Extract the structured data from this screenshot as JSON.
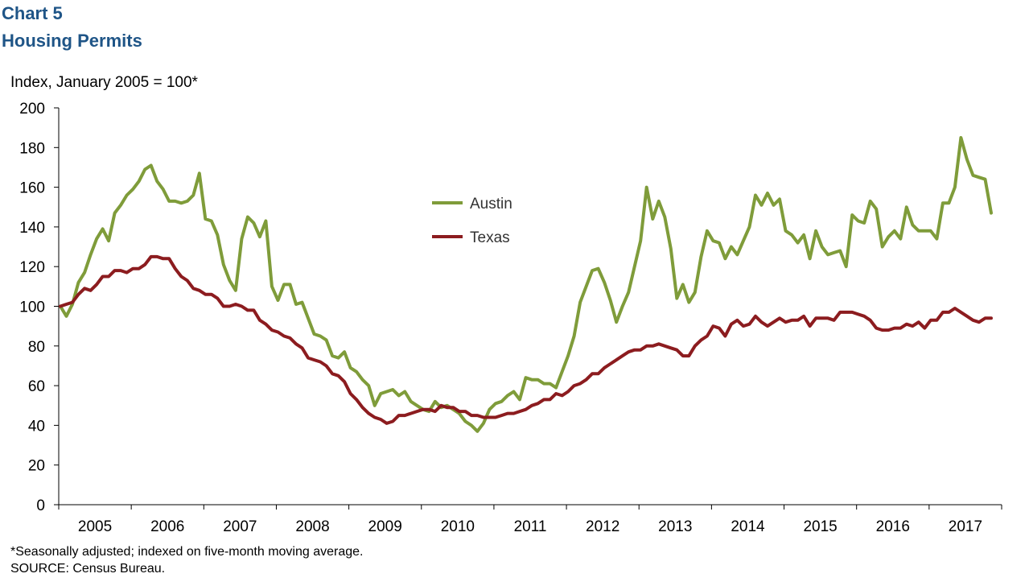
{
  "header": {
    "chart_number": "Chart 5",
    "title": "Housing Permits"
  },
  "footer": {
    "footnote": "*Seasonally adjusted; indexed on five-month moving average.",
    "source": "SOURCE: Census Bureau."
  },
  "colors": {
    "austin": "#7f9c3a",
    "texas": "#8c1c1f",
    "title": "#1f5587"
  },
  "chart_data": {
    "type": "line",
    "title": "Housing Permits",
    "ylabel": "Index, January 2005 = 100*",
    "xlabel": "",
    "x_start": "2005-01",
    "frequency": "monthly",
    "xlim": [
      "2005-01",
      "2017-12"
    ],
    "ylim": [
      0,
      200
    ],
    "yticks": [
      0,
      20,
      40,
      60,
      80,
      100,
      120,
      140,
      160,
      180,
      200
    ],
    "year_labels": [
      "2005",
      "2006",
      "2007",
      "2008",
      "2009",
      "2010",
      "2011",
      "2012",
      "2013",
      "2014",
      "2015",
      "2016",
      "2017"
    ],
    "grid": false,
    "legend": "center",
    "series": [
      {
        "name": "Austin",
        "values": [
          100,
          95,
          101,
          112,
          117,
          126,
          134,
          139,
          133,
          147,
          151,
          156,
          159,
          163,
          169,
          171,
          163,
          159,
          153,
          153,
          152,
          153,
          156,
          167,
          144,
          143,
          136,
          121,
          113,
          108,
          134,
          145,
          142,
          135,
          143,
          110,
          103,
          111,
          111,
          101,
          102,
          94,
          86,
          85,
          83,
          75,
          74,
          77,
          69,
          67,
          63,
          60,
          50,
          56,
          57,
          58,
          55,
          57,
          52,
          50,
          48,
          47,
          52,
          49,
          50,
          48,
          46,
          42,
          40,
          37,
          41,
          48,
          51,
          52,
          55,
          57,
          53,
          64,
          63,
          63,
          61,
          61,
          59,
          67,
          75,
          85,
          102,
          110,
          118,
          119,
          112,
          103,
          92,
          100,
          107,
          120,
          133,
          160,
          144,
          153,
          145,
          129,
          104,
          111,
          102,
          107,
          125,
          138,
          133,
          132,
          124,
          130,
          126,
          133,
          140,
          156,
          151,
          157,
          151,
          154,
          138,
          136,
          132,
          136,
          124,
          138,
          130,
          126,
          127,
          128,
          120,
          146,
          143,
          142,
          153,
          149,
          130,
          135,
          138,
          134,
          150,
          141,
          138,
          138,
          138,
          134,
          152,
          152,
          160,
          185,
          174,
          166,
          165,
          164,
          147
        ]
      },
      {
        "name": "Texas",
        "values": [
          100,
          101,
          102,
          106,
          109,
          108,
          111,
          115,
          115,
          118,
          118,
          117,
          119,
          119,
          121,
          125,
          125,
          124,
          124,
          119,
          115,
          113,
          109,
          108,
          106,
          106,
          104,
          100,
          100,
          101,
          100,
          98,
          98,
          93,
          91,
          88,
          87,
          85,
          84,
          81,
          79,
          74,
          73,
          72,
          70,
          66,
          65,
          62,
          56,
          53,
          49,
          46,
          44,
          43,
          41,
          42,
          45,
          45,
          46,
          47,
          48,
          48,
          47,
          50,
          49,
          49,
          47,
          47,
          45,
          45,
          44,
          44,
          44,
          45,
          46,
          46,
          47,
          48,
          50,
          51,
          53,
          53,
          56,
          55,
          57,
          60,
          61,
          63,
          66,
          66,
          69,
          71,
          73,
          75,
          77,
          78,
          78,
          80,
          80,
          81,
          80,
          79,
          78,
          75,
          75,
          80,
          83,
          85,
          90,
          89,
          85,
          91,
          93,
          90,
          91,
          95,
          92,
          90,
          92,
          94,
          92,
          93,
          93,
          95,
          90,
          94,
          94,
          94,
          93,
          97,
          97,
          97,
          96,
          95,
          93,
          89,
          88,
          88,
          89,
          89,
          91,
          90,
          92,
          89,
          93,
          93,
          97,
          97,
          99,
          97,
          95,
          93,
          92,
          94,
          94
        ]
      }
    ]
  }
}
